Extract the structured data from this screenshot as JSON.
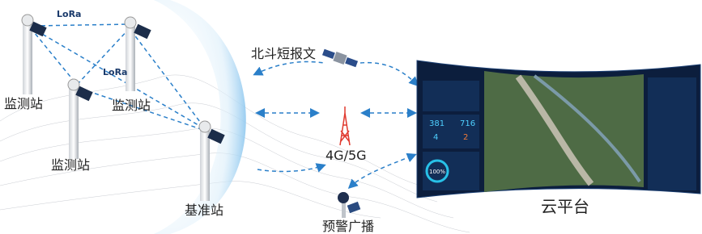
{
  "labels": {
    "lora": [
      "LoRa",
      "LoRa"
    ],
    "stations": [
      "监测站",
      "监测站",
      "监测站"
    ],
    "base": "基准站",
    "beidou": "北斗短报文",
    "cellular": "4G/5G",
    "warning": "预警广播",
    "platform": "云平台"
  },
  "dashboard": {
    "stats": [
      "381",
      "716",
      "4",
      "2"
    ],
    "gauge": "100%"
  }
}
